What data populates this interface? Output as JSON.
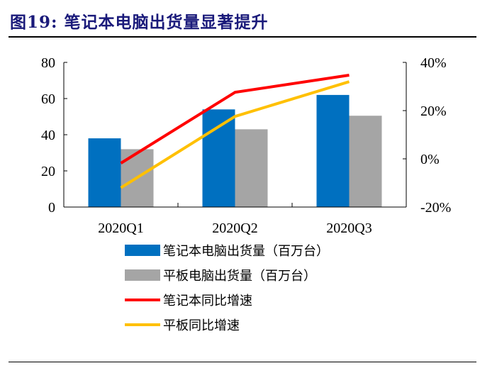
{
  "title": "图19:  笔记本电脑出货量显著提升",
  "chart_data": {
    "type": "bar+line",
    "categories": [
      "2020Q1",
      "2020Q2",
      "2020Q3"
    ],
    "left_axis": {
      "ylim": [
        0,
        80
      ],
      "ticks": [
        "0",
        "20",
        "40",
        "60",
        "80"
      ],
      "tick_values": [
        0,
        20,
        40,
        60,
        80
      ]
    },
    "right_axis": {
      "ylim": [
        -20,
        40
      ],
      "ticks": [
        "-20%",
        "0%",
        "20%",
        "40%"
      ],
      "tick_values": [
        -20,
        0,
        20,
        40
      ]
    },
    "series": [
      {
        "name": "笔记本电脑出货量（百万台）",
        "type": "bar",
        "axis": "left",
        "color": "#0070c0",
        "values": [
          38,
          54,
          62
        ]
      },
      {
        "name": "平板电脑出货量（百万台）",
        "type": "bar",
        "axis": "left",
        "color": "#a5a5a5",
        "values": [
          32,
          43,
          50.5
        ]
      },
      {
        "name": "笔记本同比增速",
        "type": "line",
        "axis": "right",
        "color": "#ff0000",
        "values": [
          -1.8,
          27.6,
          34.7
        ]
      },
      {
        "name": "平板同比增速",
        "type": "line",
        "axis": "right",
        "color": "#ffc000",
        "values": [
          -12,
          17.6,
          32
        ]
      }
    ],
    "grid": false,
    "legend_placement": "bottom"
  }
}
